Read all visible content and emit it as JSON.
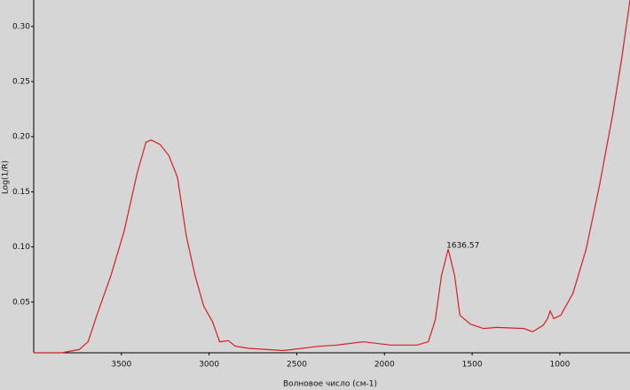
{
  "chart_data": {
    "type": "line",
    "y_label": "Log(1/R)",
    "x_label": "Волновое число (см-1)",
    "color": "#d42020",
    "x": [
      4000,
      3840,
      3740,
      3690,
      3640,
      3560,
      3485,
      3410,
      3360,
      3330,
      3280,
      3230,
      3180,
      3130,
      3080,
      3030,
      2980,
      2940,
      2890,
      2850,
      2775,
      2575,
      2370,
      2270,
      2120,
      1965,
      1815,
      1750,
      1710,
      1675,
      1636.57,
      1600,
      1570,
      1510,
      1435,
      1360,
      1205,
      1155,
      1095,
      1070,
      1055,
      1035,
      995,
      925,
      850,
      775,
      700,
      650,
      600
    ],
    "values": [
      0.004,
      0.004,
      0.007,
      0.014,
      0.038,
      0.074,
      0.114,
      0.167,
      0.195,
      0.197,
      0.193,
      0.183,
      0.163,
      0.11,
      0.074,
      0.046,
      0.032,
      0.014,
      0.015,
      0.01,
      0.008,
      0.006,
      0.01,
      0.011,
      0.014,
      0.011,
      0.011,
      0.014,
      0.034,
      0.074,
      0.098,
      0.074,
      0.038,
      0.03,
      0.026,
      0.027,
      0.026,
      0.023,
      0.029,
      0.035,
      0.042,
      0.035,
      0.038,
      0.058,
      0.098,
      0.155,
      0.219,
      0.268,
      0.324
    ],
    "xlim": [
      4000,
      600
    ],
    "xticks": [
      3500,
      3000,
      2500,
      2000,
      1500,
      1000
    ],
    "ylim": [
      0.004,
      0.324
    ],
    "yticks": [
      {
        "value": 0.05,
        "label": "0.05"
      },
      {
        "value": 0.1,
        "label": "0.10"
      },
      {
        "value": 0.15,
        "label": "0.15"
      },
      {
        "value": 0.2,
        "label": "0.20"
      },
      {
        "value": 0.25,
        "label": "0.25"
      },
      {
        "value": 0.3,
        "label": "0.30"
      }
    ],
    "annotations": [
      {
        "text": "1636.57",
        "x": 1636.57,
        "y": 0.098
      }
    ]
  }
}
